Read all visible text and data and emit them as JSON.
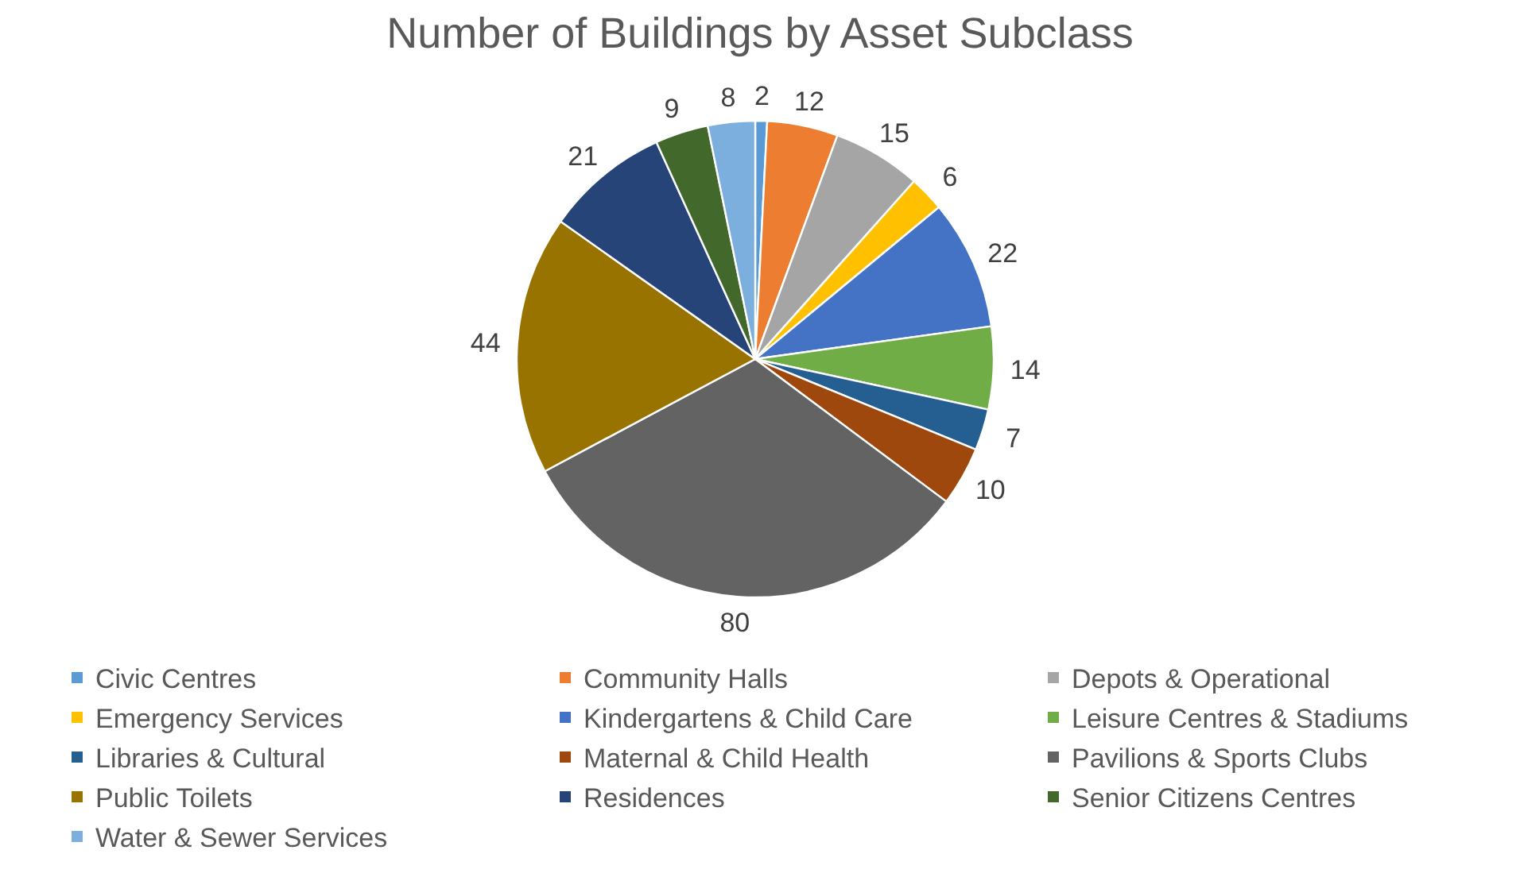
{
  "chart_data": {
    "type": "pie",
    "title": "Number of Buildings by Asset Subclass",
    "categories": [
      "Civic Centres",
      "Community Halls",
      "Depots & Operational",
      "Emergency Services",
      "Kindergartens & Child Care",
      "Leisure Centres & Stadiums",
      "Libraries & Cultural",
      "Maternal & Child Health",
      "Pavilions & Sports Clubs",
      "Public Toilets",
      "Residences",
      "Senior Citizens Centres",
      "Water & Sewer Services"
    ],
    "values": [
      2,
      12,
      15,
      6,
      22,
      14,
      7,
      10,
      80,
      44,
      21,
      9,
      8
    ],
    "colors": [
      "#5b9bd5",
      "#ed7d31",
      "#a5a5a5",
      "#ffc000",
      "#4472c4",
      "#70ad47",
      "#255e91",
      "#9e480e",
      "#636363",
      "#997300",
      "#264478",
      "#43682b",
      "#7cafdd"
    ],
    "data_labels": true,
    "legend": "bottom"
  }
}
